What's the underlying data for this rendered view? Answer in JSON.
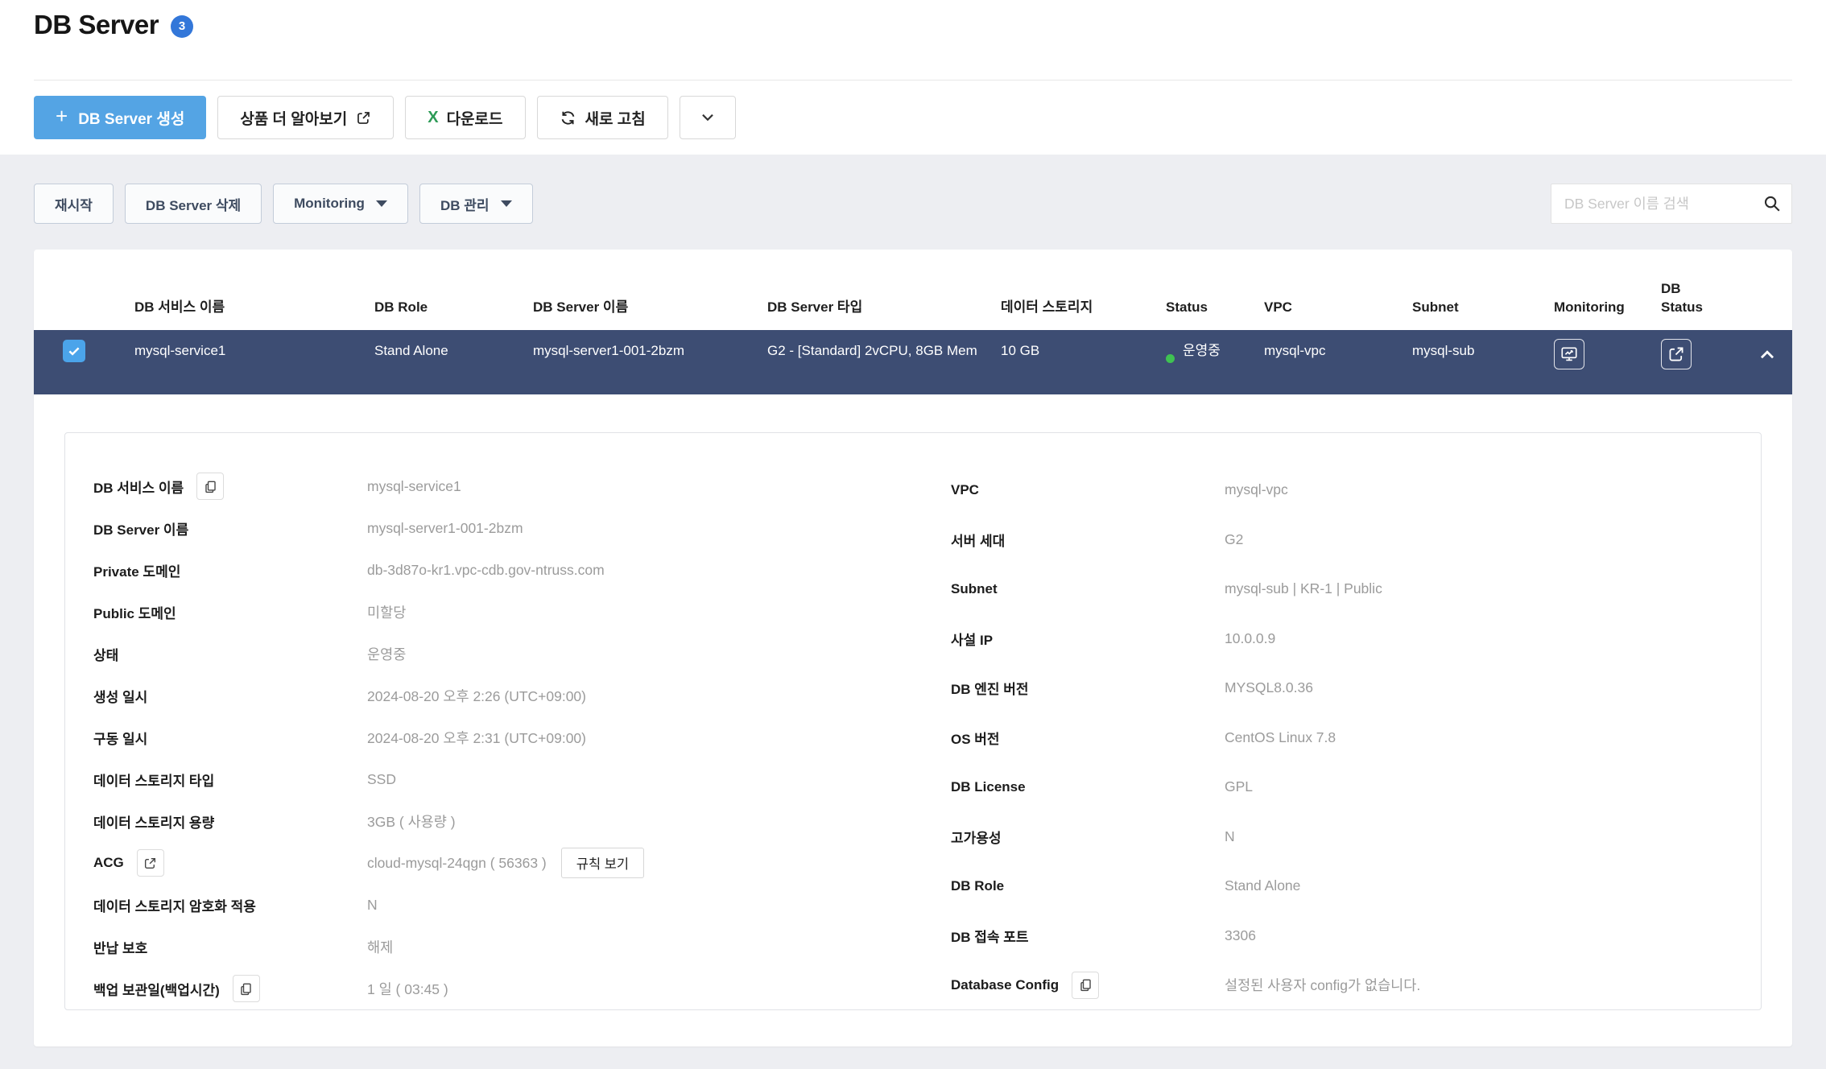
{
  "page": {
    "title": "DB Server",
    "count_badge": "3"
  },
  "actions": {
    "create_plus": "+",
    "create": "DB Server 생성",
    "learn_more": "상품 더 알아보기",
    "download_prefix": "X",
    "download": "다운로드",
    "refresh": "새로 고침"
  },
  "toolbar": {
    "restart": "재시작",
    "delete": "DB Server 삭제",
    "monitoring": "Monitoring",
    "manage": "DB 관리",
    "search_placeholder": "DB Server 이름 검색"
  },
  "table": {
    "columns": [
      "DB 서비스 이름",
      "DB Role",
      "DB Server 이름",
      "DB Server 타입",
      "데이터 스토리지",
      "Status",
      "VPC",
      "Subnet",
      "Monitoring",
      "DB\nStatus"
    ],
    "row": {
      "service_name": "mysql-service1",
      "db_role": "Stand Alone",
      "server_name": "mysql-server1-001-2bzm",
      "server_type": "G2 - [Standard] 2vCPU, 8GB Mem",
      "storage": "10 GB",
      "status": "운영중",
      "vpc": "mysql-vpc",
      "subnet": "mysql-sub"
    }
  },
  "detail": {
    "left": [
      {
        "label": "DB 서비스 이름",
        "icon": "copy",
        "value": "mysql-service1"
      },
      {
        "label": "DB Server 이름",
        "value": "mysql-server1-001-2bzm"
      },
      {
        "label": "Private 도메인",
        "value": "db-3d87o-kr1.vpc-cdb.gov-ntruss.com"
      },
      {
        "label": "Public 도메인",
        "value": "미할당"
      },
      {
        "label": "상태",
        "value": "운영중"
      },
      {
        "label": "생성 일시",
        "value": "2024-08-20 오후 2:26 (UTC+09:00)"
      },
      {
        "label": "구동 일시",
        "value": "2024-08-20 오후 2:31 (UTC+09:00)"
      },
      {
        "label": "데이터 스토리지 타입",
        "value": "SSD"
      },
      {
        "label": "데이터 스토리지 용량",
        "value": "3GB ( 사용량 )"
      },
      {
        "label": "ACG",
        "icon": "external",
        "value": "cloud-mysql-24qgn ( 56363 )",
        "action": "규칙 보기"
      },
      {
        "label": "데이터 스토리지 암호화 적용",
        "value": "N"
      },
      {
        "label": "반납 보호",
        "value": "해제"
      },
      {
        "label": "백업 보관일(백업시간)",
        "icon": "copy",
        "value": "1 일 ( 03:45 )"
      }
    ],
    "right": [
      {
        "label": "VPC",
        "value": "mysql-vpc"
      },
      {
        "label": "서버 세대",
        "value": "G2"
      },
      {
        "label": "Subnet",
        "value": "mysql-sub | KR-1 | Public"
      },
      {
        "label": "사설 IP",
        "value": "10.0.0.9"
      },
      {
        "label": "DB 엔진 버전",
        "value": "MYSQL8.0.36"
      },
      {
        "label": "OS 버전",
        "value": "CentOS Linux 7.8"
      },
      {
        "label": "DB License",
        "value": "GPL"
      },
      {
        "label": "고가용성",
        "value": "N"
      },
      {
        "label": "DB Role",
        "value": "Stand Alone"
      },
      {
        "label": "DB 접속 포트",
        "value": "3306"
      },
      {
        "label": "Database Config",
        "icon": "copy",
        "value": "설정된 사용자 config가 없습니다."
      }
    ]
  },
  "colors": {
    "primary_blue": "#54a4e4",
    "badge_blue": "#3377d9",
    "selected_row_navy": "#3d4d73",
    "checkbox_blue": "#4ba4ea",
    "status_green": "#3fc252",
    "excel_green": "#2e9b57",
    "page_gray": "#edeef2"
  }
}
